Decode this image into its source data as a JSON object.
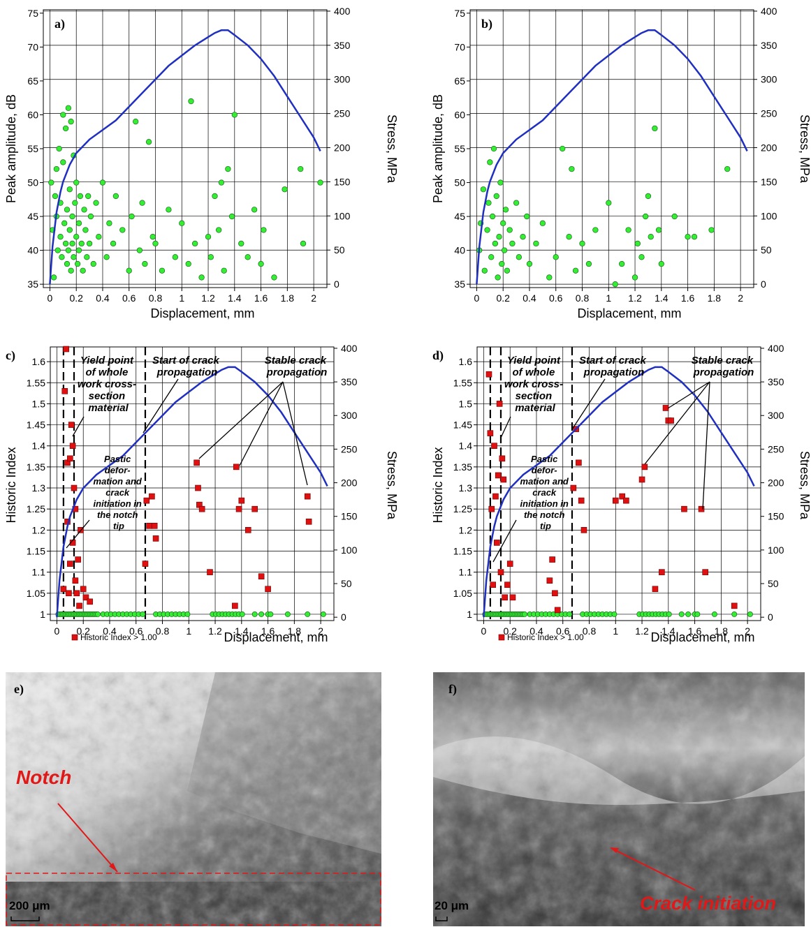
{
  "figure": {
    "panel_a": {
      "label": "a)",
      "xlabel": "Displacement, mm",
      "ylabel": "Peak amplitude, dB",
      "y2label": "Stress, MPa",
      "xticks": [
        "0",
        "0.2",
        "0.4",
        "0.6",
        "0.8",
        "1",
        "1.2",
        "1.4",
        "1.6",
        "1.8",
        "2"
      ],
      "yticks": [
        "35",
        "40",
        "45",
        "50",
        "55",
        "60",
        "65",
        "70",
        "75"
      ],
      "y2ticks": [
        "0",
        "50",
        "100",
        "150",
        "200",
        "250",
        "300",
        "350",
        "400"
      ]
    },
    "panel_b": {
      "label": "b)",
      "xlabel": "Displacement, mm",
      "ylabel": "Peak amplitude, dB",
      "y2label": "Stress, MPa",
      "xticks": [
        "0",
        "0.2",
        "0.4",
        "0.6",
        "0.8",
        "1",
        "1.2",
        "1.4",
        "1.6",
        "1.8",
        "2"
      ],
      "yticks": [
        "35",
        "40",
        "45",
        "50",
        "55",
        "60",
        "65",
        "70",
        "75"
      ],
      "y2ticks": [
        "0",
        "50",
        "100",
        "150",
        "200",
        "250",
        "300",
        "350",
        "400"
      ]
    },
    "panel_c": {
      "label": "c)",
      "xlabel": "Displacement, mm",
      "ylabel": "Historic Index",
      "y2label": "Stress, MPa",
      "legend": "Historic Index > 1.00",
      "xticks": [
        "0",
        "0.2",
        "0.4",
        "0.6",
        "0.8",
        "1",
        "1.2",
        "1.4",
        "1.6",
        "1.8",
        "2"
      ],
      "yticks": [
        "1",
        "1.05",
        "1.1",
        "1.15",
        "1.2",
        "1.25",
        "1.3",
        "1.35",
        "1.4",
        "1.45",
        "1.5",
        "1.55",
        "1.6"
      ],
      "y2ticks": [
        "0",
        "50",
        "100",
        "150",
        "200",
        "250",
        "300",
        "350",
        "400"
      ],
      "annotations": {
        "yield": [
          "Yield point",
          "of whole",
          "work cross-",
          "section",
          "material"
        ],
        "start": [
          "Start of crack",
          "propagation"
        ],
        "stable": [
          "Stable crack",
          "propagation"
        ],
        "plastic": [
          "Pastic",
          "defor-",
          "mation and",
          "crack",
          "initiation in",
          "the notch",
          "tip"
        ]
      }
    },
    "panel_d": {
      "label": "d)",
      "xlabel": "Displacement, mm",
      "ylabel": "Historic Index",
      "y2label": "Stress, MPa",
      "legend": "Historic Index > 1.00",
      "xticks": [
        "0",
        "0.2",
        "0.4",
        "0.6",
        "0.8",
        "1",
        "1.2",
        "1.4",
        "1.6",
        "1.8",
        "2"
      ],
      "yticks": [
        "1",
        "1.05",
        "1.1",
        "1.15",
        "1.2",
        "1.25",
        "1.3",
        "1.35",
        "1.4",
        "1.45",
        "1.5",
        "1.55",
        "1.6"
      ],
      "y2ticks": [
        "0",
        "50",
        "100",
        "150",
        "200",
        "250",
        "300",
        "350",
        "400"
      ],
      "annotations": {
        "yield": [
          "Yield point",
          "of whole",
          "work cross-",
          "section",
          "material"
        ],
        "start": [
          "Start of crack",
          "propagation"
        ],
        "stable": [
          "Stable crack",
          "propagation"
        ],
        "plastic": [
          "Pastic",
          "defor-",
          "mation and",
          "crack",
          "initiation in",
          "the notch",
          "tip"
        ]
      }
    },
    "panel_e": {
      "label": "e)",
      "notch": "Notch",
      "scale": "200 μm"
    },
    "panel_f": {
      "label": "f)",
      "crack": "Crack initiation",
      "scale": "20 μm"
    }
  },
  "colors": {
    "stress_curve": "#1f2fc0",
    "points_green": "#33ee33",
    "points_red": "#e01010",
    "annotation_red": "#e01818"
  },
  "chart_data": [
    {
      "type": "scatter",
      "panel": "a",
      "xlabel": "Displacement, mm",
      "ylabel": "Peak amplitude, dB",
      "y2label": "Stress, MPa",
      "xlim": [
        -0.05,
        2.1
      ],
      "ylim": [
        34.5,
        75.5
      ],
      "y2lim": [
        -5,
        402
      ],
      "grid": true,
      "stress_curve": {
        "x": [
          0,
          0.02,
          0.05,
          0.08,
          0.1,
          0.15,
          0.2,
          0.3,
          0.4,
          0.5,
          0.6,
          0.7,
          0.8,
          0.9,
          1.0,
          1.1,
          1.2,
          1.25,
          1.3,
          1.35,
          1.4,
          1.5,
          1.6,
          1.7,
          1.8,
          1.9,
          2.0,
          2.05
        ],
        "y": [
          0,
          55,
          105,
          135,
          150,
          175,
          192,
          212,
          226,
          240,
          260,
          280,
          300,
          320,
          335,
          350,
          362,
          368,
          372,
          372,
          365,
          350,
          330,
          305,
          275,
          245,
          215,
          195
        ]
      },
      "points": {
        "x": [
          0.01,
          0.02,
          0.03,
          0.04,
          0.05,
          0.05,
          0.06,
          0.07,
          0.08,
          0.08,
          0.09,
          0.1,
          0.1,
          0.11,
          0.12,
          0.12,
          0.13,
          0.13,
          0.14,
          0.14,
          0.15,
          0.15,
          0.16,
          0.16,
          0.17,
          0.17,
          0.18,
          0.18,
          0.19,
          0.2,
          0.2,
          0.21,
          0.22,
          0.22,
          0.23,
          0.24,
          0.25,
          0.26,
          0.27,
          0.28,
          0.29,
          0.3,
          0.31,
          0.33,
          0.35,
          0.37,
          0.4,
          0.43,
          0.45,
          0.48,
          0.5,
          0.55,
          0.6,
          0.62,
          0.65,
          0.68,
          0.7,
          0.72,
          0.75,
          0.78,
          0.8,
          0.85,
          0.9,
          0.95,
          1.0,
          1.05,
          1.07,
          1.1,
          1.15,
          1.2,
          1.22,
          1.25,
          1.28,
          1.3,
          1.32,
          1.35,
          1.38,
          1.4,
          1.45,
          1.5,
          1.55,
          1.6,
          1.62,
          1.7,
          1.78,
          1.9,
          1.92,
          2.05
        ],
        "y": [
          50,
          43,
          36,
          48,
          45,
          52,
          40,
          55,
          42,
          47,
          39,
          53,
          60,
          44,
          41,
          58,
          38,
          46,
          61,
          40,
          49,
          43,
          59,
          37,
          45,
          41,
          54,
          39,
          47,
          42,
          50,
          38,
          44,
          40,
          48,
          41,
          37,
          46,
          43,
          39,
          48,
          41,
          45,
          38,
          47,
          42,
          50,
          39,
          44,
          41,
          48,
          43,
          37,
          45,
          59,
          40,
          47,
          38,
          56,
          42,
          41,
          37,
          46,
          39,
          44,
          38,
          62,
          41,
          36,
          42,
          39,
          48,
          43,
          50,
          37,
          52,
          45,
          60,
          41,
          39,
          46,
          38,
          43,
          36,
          49,
          52,
          41,
          50
        ]
      }
    },
    {
      "type": "scatter",
      "panel": "b",
      "xlabel": "Displacement, mm",
      "ylabel": "Peak amplitude, dB",
      "y2label": "Stress, MPa",
      "xlim": [
        -0.05,
        2.1
      ],
      "ylim": [
        34.5,
        75.5
      ],
      "y2lim": [
        -5,
        402
      ],
      "grid": true,
      "points": {
        "x": [
          0.02,
          0.03,
          0.05,
          0.06,
          0.08,
          0.09,
          0.1,
          0.11,
          0.12,
          0.13,
          0.14,
          0.15,
          0.16,
          0.17,
          0.18,
          0.19,
          0.2,
          0.21,
          0.22,
          0.23,
          0.25,
          0.27,
          0.3,
          0.32,
          0.35,
          0.38,
          0.4,
          0.45,
          0.5,
          0.55,
          0.6,
          0.65,
          0.7,
          0.72,
          0.75,
          0.8,
          0.85,
          0.9,
          1.0,
          1.05,
          1.1,
          1.15,
          1.2,
          1.22,
          1.25,
          1.28,
          1.3,
          1.32,
          1.35,
          1.38,
          1.4,
          1.5,
          1.6,
          1.65,
          1.78,
          1.9
        ],
        "y": [
          40,
          44,
          49,
          37,
          43,
          47,
          53,
          39,
          45,
          55,
          41,
          48,
          36,
          42,
          50,
          38,
          44,
          40,
          46,
          37,
          43,
          41,
          47,
          39,
          42,
          45,
          38,
          41,
          44,
          36,
          39,
          55,
          42,
          52,
          37,
          41,
          38,
          43,
          47,
          35,
          38,
          43,
          36,
          41,
          39,
          45,
          48,
          42,
          58,
          43,
          38,
          45,
          42,
          42,
          43,
          52
        ]
      }
    },
    {
      "type": "scatter",
      "panel": "c",
      "xlabel": "Displacement, mm",
      "ylabel": "Historic Index",
      "y2label": "Stress, MPa",
      "xlim": [
        -0.05,
        2.1
      ],
      "ylim": [
        0.985,
        1.635
      ],
      "y2lim": [
        -5,
        402
      ],
      "legend": "Historic Index > 1.00",
      "red_points": {
        "x": [
          0.05,
          0.06,
          0.07,
          0.08,
          0.08,
          0.09,
          0.1,
          0.1,
          0.11,
          0.12,
          0.12,
          0.13,
          0.14,
          0.14,
          0.15,
          0.16,
          0.17,
          0.18,
          0.2,
          0.22,
          0.25,
          0.67,
          0.68,
          0.7,
          0.72,
          0.74,
          0.75,
          1.06,
          1.07,
          1.08,
          1.1,
          1.16,
          1.35,
          1.36,
          1.38,
          1.4,
          1.45,
          1.5,
          1.55,
          1.6,
          1.9,
          1.91
        ],
        "y": [
          1.06,
          1.53,
          1.63,
          1.36,
          1.22,
          1.05,
          1.37,
          1.12,
          1.45,
          1.4,
          1.17,
          1.3,
          1.08,
          1.25,
          1.05,
          1.13,
          1.02,
          1.2,
          1.06,
          1.04,
          1.03,
          1.12,
          1.27,
          1.21,
          1.28,
          1.21,
          1.18,
          1.36,
          1.3,
          1.26,
          1.25,
          1.1,
          1.02,
          1.35,
          1.25,
          1.27,
          1.2,
          1.25,
          1.09,
          1.06,
          1.28,
          1.22
        ]
      },
      "green_points_y": 1.0
    },
    {
      "type": "scatter",
      "panel": "d",
      "xlabel": "Displacement, mm",
      "ylabel": "Historic Index",
      "y2label": "Stress, MPa",
      "xlim": [
        -0.05,
        2.1
      ],
      "ylim": [
        0.985,
        1.635
      ],
      "y2lim": [
        -5,
        402
      ],
      "legend": "Historic Index > 1.00",
      "red_points": {
        "x": [
          0.04,
          0.05,
          0.06,
          0.07,
          0.08,
          0.09,
          0.1,
          0.11,
          0.12,
          0.13,
          0.14,
          0.15,
          0.16,
          0.18,
          0.2,
          0.22,
          0.5,
          0.52,
          0.54,
          0.56,
          0.68,
          0.7,
          0.72,
          0.74,
          0.76,
          1.0,
          1.05,
          1.08,
          1.2,
          1.22,
          1.3,
          1.35,
          1.38,
          1.4,
          1.42,
          1.52,
          1.65,
          1.68,
          1.9
        ],
        "y": [
          1.57,
          1.43,
          1.25,
          1.07,
          1.4,
          1.28,
          1.17,
          1.33,
          1.5,
          1.1,
          1.37,
          1.32,
          1.04,
          1.07,
          1.12,
          1.04,
          1.08,
          1.13,
          1.05,
          1.01,
          1.3,
          1.44,
          1.36,
          1.27,
          1.2,
          1.27,
          1.28,
          1.27,
          1.32,
          1.35,
          1.06,
          1.1,
          1.49,
          1.46,
          1.46,
          1.25,
          1.25,
          1.1,
          1.02
        ]
      },
      "green_points_y": 1.0
    }
  ]
}
